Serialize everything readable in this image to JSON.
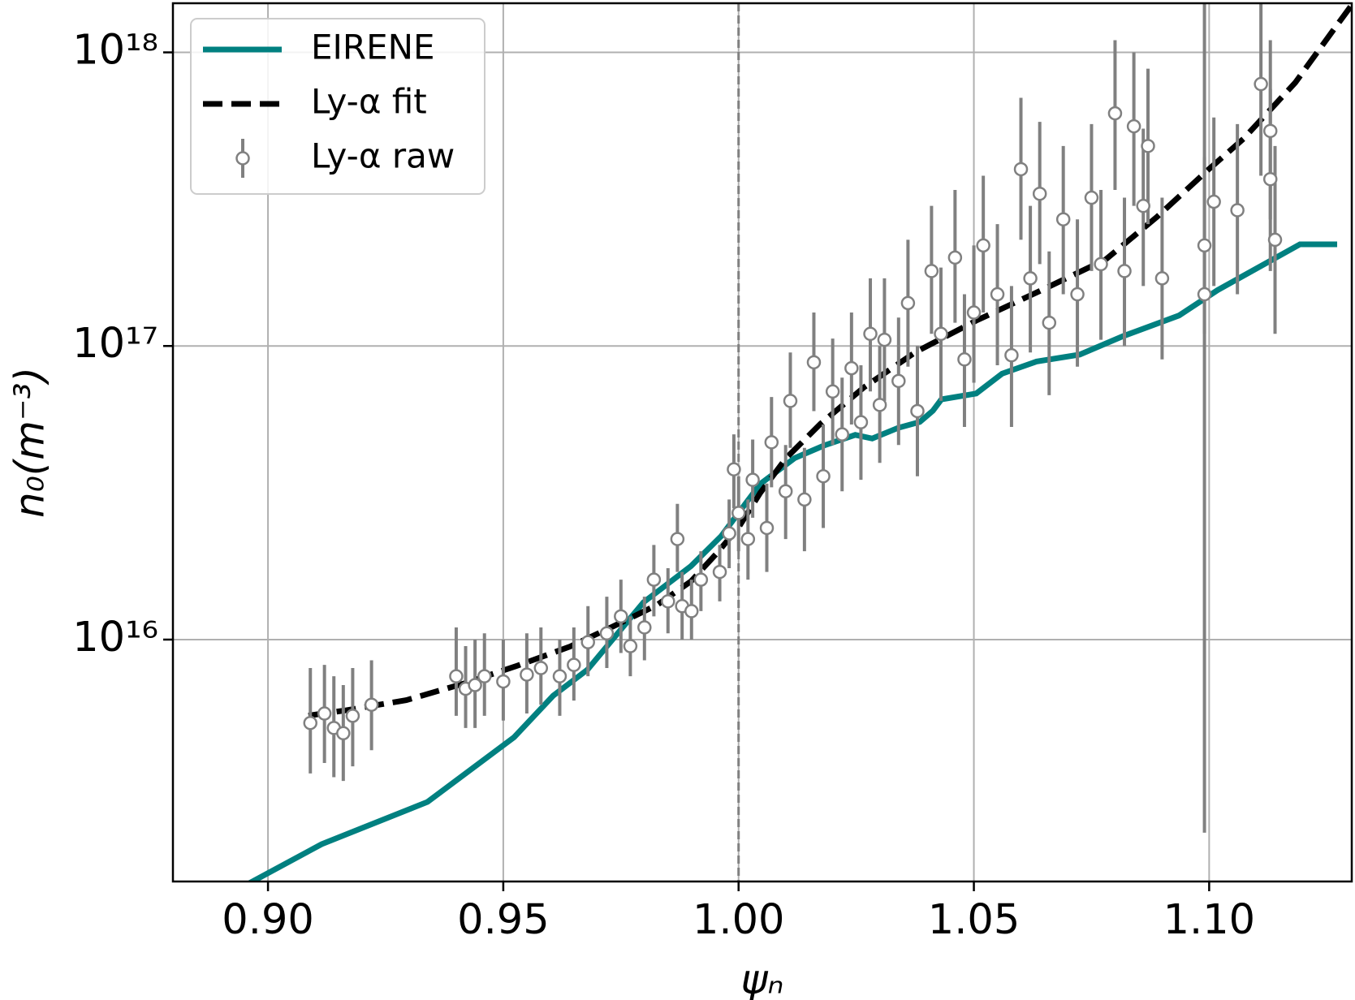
{
  "chart_data": {
    "type": "line",
    "xlabel": "ψₙ",
    "ylabel": "n₀(m⁻³)",
    "xlim": [
      0.8798,
      1.1303
    ],
    "ylim": [
      1500000000000000.0,
      1.47e+18
    ],
    "yscale": "log",
    "grid": true,
    "legend": "upper left",
    "vlines": [
      1.0
    ],
    "xticks": [
      {
        "value": 0.9,
        "label": "0.90"
      },
      0.95,
      {
        "value": 1.0,
        "label": "1.00"
      },
      1.05,
      {
        "value": 1.1,
        "label": "1.10"
      }
    ],
    "yticks": [
      {
        "value": 1e+16,
        "label": "10¹⁶"
      },
      {
        "value": 1e+17,
        "label": "10¹⁷"
      },
      {
        "value": 1e+18,
        "label": "10¹⁸"
      }
    ],
    "series": [
      {
        "name": "EIRENE",
        "type": "line",
        "color": "#008080",
        "dash": false,
        "x": [
          0.895,
          0.9114,
          0.9339,
          0.9523,
          0.9606,
          0.9679,
          0.9798,
          0.9899,
          0.9963,
          1.0046,
          1.0119,
          1.0183,
          1.0248,
          1.0284,
          1.0339,
          1.0385,
          1.0413,
          1.0431,
          1.0505,
          1.056,
          1.0633,
          1.0725,
          1.0817,
          1.0936,
          1.1018,
          1.1193,
          1.1272
        ],
        "values": [
          1450000000000000.0,
          2010000000000000.0,
          2800000000000000.0,
          4650000000000000.0,
          6440000000000000.0,
          7900000000000000.0,
          1.34e+16,
          1.78e+16,
          2.25e+16,
          3.39e+16,
          4.15e+16,
          4.59e+16,
          4.98e+16,
          4.84e+16,
          5.26e+16,
          5.51e+16,
          6.02e+16,
          6.58e+16,
          6.89e+16,
          8.05e+16,
          8.85e+16,
          9.35e+16,
          1.08e+17,
          1.27e+17,
          1.55e+17,
          2.22e+17,
          2.22e+17
        ]
      },
      {
        "name": "Ly-α fit",
        "type": "line",
        "color": "#000000",
        "dash": true,
        "x": [
          0.9086,
          0.9165,
          0.9294,
          0.9422,
          0.9532,
          0.9642,
          0.9734,
          0.9826,
          0.9899,
          0.9954,
          1.0,
          1.0046,
          1.0101,
          1.0174,
          1.0266,
          1.0376,
          1.0505,
          1.0633,
          1.078,
          1.089,
          1.1,
          1.1073,
          1.1183,
          1.1257,
          1.1303
        ],
        "values": [
          5510000000000000.0,
          5740000000000000.0,
          6220000000000000.0,
          7130000000000000.0,
          8170000000000000.0,
          9470000000000000.0,
          1.11e+16,
          1.31e+16,
          1.58e+16,
          1.97e+16,
          2.41e+16,
          3.16e+16,
          4.15e+16,
          5.43e+16,
          7.22e+16,
          9.53e+16,
          1.22e+17,
          1.52e+17,
          1.97e+17,
          2.76e+17,
          4.01e+17,
          5.08e+17,
          7.89e+17,
          1.15e+18,
          1.45e+18
        ]
      },
      {
        "name": "Ly-α raw",
        "type": "errorbar",
        "color": "#808080",
        "x": [
          0.909,
          0.912,
          0.914,
          0.916,
          0.918,
          0.922,
          0.94,
          0.942,
          0.944,
          0.946,
          0.95,
          0.955,
          0.958,
          0.962,
          0.965,
          0.968,
          0.972,
          0.975,
          0.977,
          0.98,
          0.982,
          0.985,
          0.987,
          0.988,
          0.99,
          0.992,
          0.996,
          0.998,
          0.999,
          1.0,
          1.002,
          1.003,
          1.006,
          1.007,
          1.01,
          1.011,
          1.014,
          1.016,
          1.018,
          1.02,
          1.022,
          1.024,
          1.026,
          1.028,
          1.03,
          1.031,
          1.034,
          1.036,
          1.038,
          1.041,
          1.043,
          1.046,
          1.048,
          1.05,
          1.052,
          1.055,
          1.058,
          1.06,
          1.062,
          1.064,
          1.066,
          1.069,
          1.072,
          1.075,
          1.077,
          1.08,
          1.082,
          1.084,
          1.086,
          1.087,
          1.09,
          1.099,
          1.099,
          1.101,
          1.106,
          1.111,
          1.113,
          1.113,
          1.114
        ],
        "values": [
          5200000000000000.0,
          5600000000000000.0,
          5000000000000000.0,
          4800000000000000.0,
          5500000000000000.0,
          6000000000000000.0,
          7500000000000000.0,
          6800000000000000.0,
          7000000000000000.0,
          7500000000000000.0,
          7200000000000000.0,
          7600000000000000.0,
          8000000000000000.0,
          7500000000000000.0,
          8200000000000000.0,
          9800000000000000.0,
          1.05e+16,
          1.2e+16,
          9500000000000000.0,
          1.1e+16,
          1.6e+16,
          1.35e+16,
          2.2e+16,
          1.3e+16,
          1.25e+16,
          1.6e+16,
          1.7e+16,
          2.3e+16,
          3.8e+16,
          2.7e+16,
          2.2e+16,
          3.5e+16,
          2.4e+16,
          4.7e+16,
          3.2e+16,
          6.5e+16,
          3e+16,
          8.8e+16,
          3.6e+16,
          7e+16,
          5e+16,
          8.4e+16,
          5.5e+16,
          1.1e+17,
          6.3e+16,
          1.05e+17,
          7.6e+16,
          1.4e+17,
          6e+16,
          1.8e+17,
          1.1e+17,
          2e+17,
          9e+16,
          1.3e+17,
          2.2e+17,
          1.5e+17,
          9.3e+16,
          4e+17,
          1.7e+17,
          3.3e+17,
          1.2e+17,
          2.7e+17,
          1.5e+17,
          3.2e+17,
          1.9e+17,
          6.2e+17,
          1.8e+17,
          5.6e+17,
          3e+17,
          4.8e+17,
          1.7e+17,
          2.2e+17,
          1.5e+17,
          3.1e+17,
          2.9e+17,
          7.8e+17,
          5.4e+17,
          3.7e+17,
          2.3e+17
        ],
        "ylow": [
          3500000000000000.0,
          3800000000000000.0,
          3400000000000000.0,
          3300000000000000.0,
          3700000000000000.0,
          4200000000000000.0,
          5500000000000000.0,
          5000000000000000.0,
          5000000000000000.0,
          5500000000000000.0,
          5300000000000000.0,
          5600000000000000.0,
          6000000000000000.0,
          5500000000000000.0,
          6200000000000000.0,
          7500000000000000.0,
          8000000000000000.0,
          9000000000000000.0,
          7500000000000000.0,
          8500000000000000.0,
          1.2e+16,
          1.05e+16,
          1.7e+16,
          1e+16,
          1e+16,
          1.25e+16,
          1.35e+16,
          1.75e+16,
          2.8e+16,
          2e+16,
          1.6e+16,
          2.6e+16,
          1.7e+16,
          3.3e+16,
          2.2e+16,
          4.5e+16,
          2e+16,
          6e+16,
          2.4e+16,
          4.6e+16,
          3.2e+16,
          5.4e+16,
          3.5e+16,
          7e+16,
          4e+16,
          6.5e+16,
          4.6e+16,
          8.5e+16,
          3.6e+16,
          1.1e+17,
          6.5e+16,
          1.2e+17,
          5.3e+16,
          7.5e+16,
          1.3e+17,
          8.6e+16,
          5.3e+16,
          2.3e+17,
          9.5e+16,
          1.9e+17,
          6.8e+16,
          1.5e+17,
          8.5e+16,
          1.8e+17,
          1.05e+17,
          3.4e+17,
          1e+17,
          3e+17,
          1.6e+17,
          2.6e+17,
          9e+16,
          1.1e+17,
          2200000000000000.0,
          1.6e+17,
          1.5e+17,
          3.8e+17,
          2.7e+17,
          1.8e+17,
          1.1e+17
        ],
        "yhigh": [
          8000000000000000.0,
          8200000000000000.0,
          7500000000000000.0,
          7000000000000000.0,
          8000000000000000.0,
          8500000000000000.0,
          1.1e+16,
          9500000000000000.0,
          1e+16,
          1.05e+16,
          1e+16,
          1.05e+16,
          1.1e+16,
          1e+16,
          1.1e+16,
          1.3e+16,
          1.4e+16,
          1.6e+16,
          1.2e+16,
          1.4e+16,
          2.1e+16,
          1.75e+16,
          2.9e+16,
          1.7e+16,
          1.6e+16,
          2e+16,
          2.1e+16,
          3e+16,
          5e+16,
          3.6e+16,
          3e+16,
          4.8e+16,
          3.4e+16,
          6.7e+16,
          4.6e+16,
          9.5e+16,
          4.5e+16,
          1.3e+17,
          5.4e+16,
          1.06e+17,
          7.8e+16,
          1.3e+17,
          8.6e+16,
          1.7e+17,
          1e+17,
          1.7e+17,
          1.25e+17,
          2.3e+17,
          1e+17,
          3e+17,
          1.85e+17,
          3.4e+17,
          1.5e+17,
          2.2e+17,
          3.8e+17,
          2.6e+17,
          1.6e+17,
          7e+17,
          3e+17,
          5.8e+17,
          2.1e+17,
          4.8e+17,
          2.7e+17,
          5.7e+17,
          3.4e+17,
          1.1e+18,
          3.2e+17,
          1e+18,
          5.5e+17,
          8.8e+17,
          3.2e+17,
          4.4e+17,
          1.5e+18,
          6e+17,
          5.7e+17,
          1.6e+18,
          1.1e+18,
          7.5e+17,
          4.8e+17
        ]
      }
    ]
  }
}
